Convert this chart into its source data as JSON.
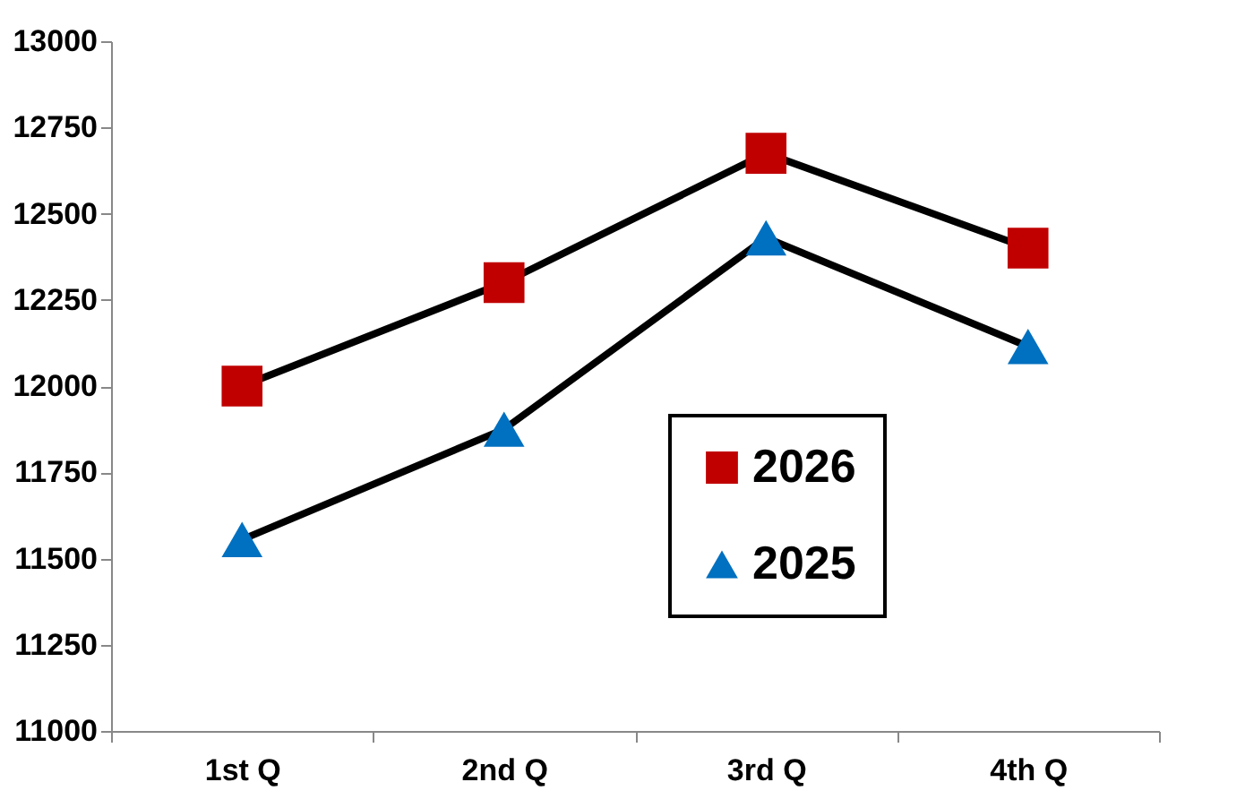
{
  "chart_data": {
    "type": "line",
    "categories": [
      "1st Q",
      "2nd Q",
      "3rd Q",
      "4th Q"
    ],
    "series": [
      {
        "name": "2026",
        "color": "#c00000",
        "marker": "square",
        "values": [
          12000,
          12300,
          12675,
          12400
        ]
      },
      {
        "name": "2025",
        "color": "#0070c0",
        "marker": "triangle",
        "values": [
          11555,
          11875,
          12430,
          12115
        ]
      }
    ],
    "ylim": [
      11000,
      13000
    ],
    "yticks": [
      11000,
      11250,
      11500,
      11750,
      12000,
      12250,
      12500,
      12750,
      13000
    ],
    "grid": false,
    "legend": "bottom right",
    "line_style": "solid"
  }
}
